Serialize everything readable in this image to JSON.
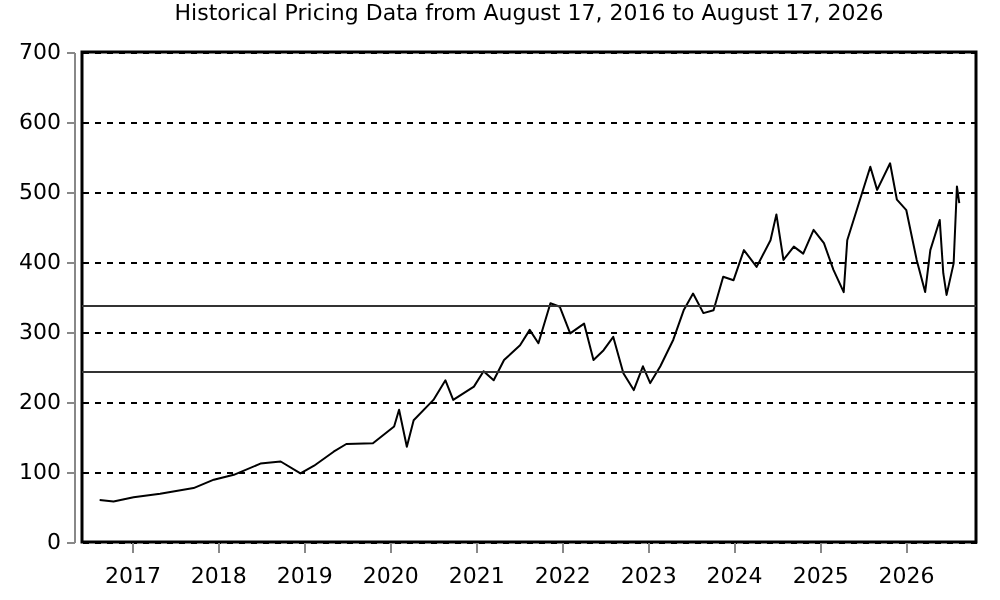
{
  "chart_data": {
    "type": "line",
    "title": "Historical Pricing Data from August 17, 2016 to August 17, 2026",
    "x": [
      "2016-08-17",
      "2016-10-15",
      "2017-01-08",
      "2017-05-01",
      "2017-09-20",
      "2017-12-15",
      "2018-03-10",
      "2018-07-01",
      "2018-09-25",
      "2018-12-18",
      "2019-02-14",
      "2019-05-08",
      "2019-07-01",
      "2019-10-22",
      "2020-01-20",
      "2020-02-10",
      "2020-03-14",
      "2020-04-12",
      "2020-07-05",
      "2020-08-25",
      "2020-09-27",
      "2020-12-24",
      "2021-02-03",
      "2021-03-18",
      "2021-05-01",
      "2021-07-08",
      "2021-08-18",
      "2021-09-24",
      "2021-11-14",
      "2021-12-24",
      "2022-02-06",
      "2022-04-06",
      "2022-05-16",
      "2022-06-28",
      "2022-08-08",
      "2022-09-20",
      "2022-11-03",
      "2022-12-12",
      "2023-01-12",
      "2023-02-24",
      "2023-04-20",
      "2023-06-03",
      "2023-07-13",
      "2023-08-26",
      "2023-10-08",
      "2023-11-18",
      "2024-01-01",
      "2024-02-14",
      "2024-04-08",
      "2024-06-06",
      "2024-07-01",
      "2024-07-31",
      "2024-09-13",
      "2024-10-23",
      "2024-12-06",
      "2025-01-19",
      "2025-02-28",
      "2025-04-13",
      "2025-04-28",
      "2025-06-21",
      "2025-08-04",
      "2025-09-02",
      "2025-10-27",
      "2025-11-25",
      "2026-01-04",
      "2026-02-17",
      "2026-03-25",
      "2026-04-16",
      "2026-05-26",
      "2026-06-10",
      "2026-06-24",
      "2026-07-24",
      "2026-08-07",
      "2026-08-17"
    ],
    "series": [
      {
        "color": "#000000",
        "values": [
          60,
          58,
          64,
          69,
          77,
          89,
          96,
          112,
          115,
          98,
          109,
          129,
          140,
          141,
          165,
          189,
          136,
          174,
          203,
          231,
          203,
          222,
          244,
          231,
          260,
          281,
          303,
          284,
          341,
          336,
          298,
          312,
          260,
          274,
          293,
          241,
          217,
          251,
          227,
          251,
          289,
          331,
          355,
          327,
          331,
          379,
          374,
          417,
          393,
          431,
          468,
          403,
          422,
          412,
          446,
          427,
          389,
          357,
          431,
          489,
          536,
          503,
          541,
          489,
          474,
          403,
          357,
          417,
          460,
          384,
          353,
          398,
          508,
          484
        ]
      }
    ],
    "xlim": [
      "2016-06-03",
      "2026-10-27"
    ],
    "xticks": [
      "2017",
      "2018",
      "2019",
      "2020",
      "2021",
      "2022",
      "2023",
      "2024",
      "2025",
      "2026"
    ],
    "ylim": [
      0,
      700
    ],
    "yticks": [
      0,
      100,
      200,
      300,
      400,
      500,
      600,
      700
    ],
    "grid": "y",
    "legend": false,
    "line_style": "solid",
    "marker": "none",
    "ref_lines": [
      {
        "axis": "y",
        "value": 337,
        "color": "#333333"
      },
      {
        "axis": "y",
        "value": 243,
        "color": "#333333"
      }
    ]
  }
}
